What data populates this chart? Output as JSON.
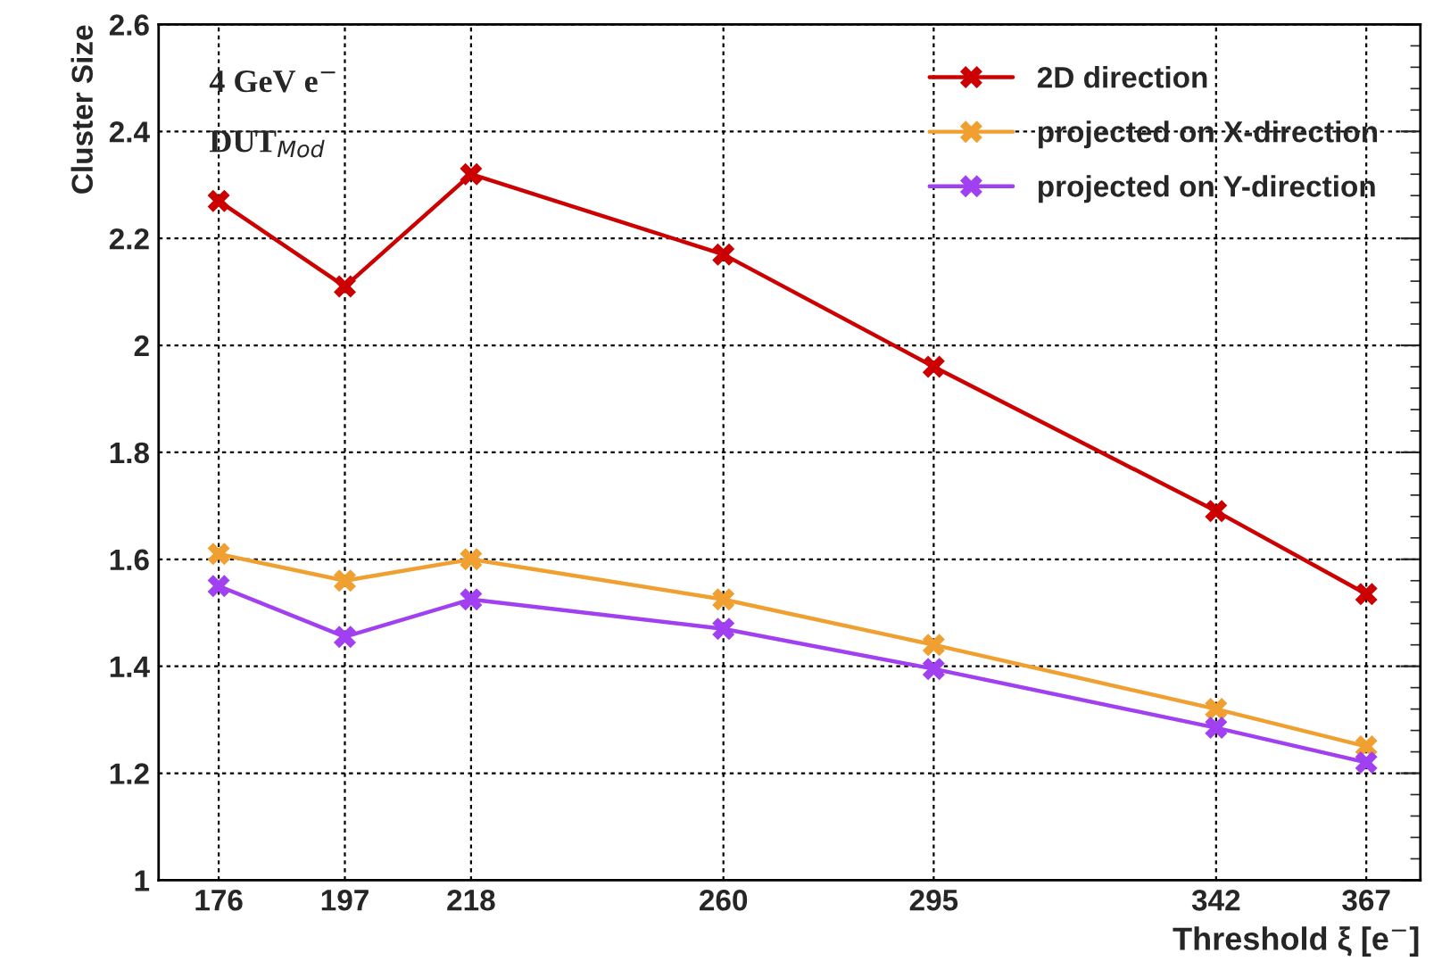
{
  "chart_data": {
    "type": "line",
    "xlabel": "Threshold ξ [e$^{−}$]",
    "ylabel": "Cluster Size",
    "x": [
      176,
      197,
      218,
      260,
      295,
      342,
      367
    ],
    "series": [
      {
        "name": "2D direction",
        "color": "#cc0000",
        "values": [
          2.27,
          2.11,
          2.32,
          2.17,
          1.96,
          1.69,
          1.535
        ]
      },
      {
        "name": "projected on X-direction",
        "color": "#f0a030",
        "values": [
          1.61,
          1.56,
          1.6,
          1.525,
          1.44,
          1.32,
          1.25
        ]
      },
      {
        "name": "projected on Y-direction",
        "color": "#a040f0",
        "values": [
          1.55,
          1.455,
          1.525,
          1.47,
          1.395,
          1.285,
          1.22
        ]
      }
    ],
    "xlim": [
      166,
      376
    ],
    "xticks": [
      176,
      197,
      218,
      260,
      295,
      342,
      367
    ],
    "ylim": [
      1,
      2.6
    ],
    "yticks": [
      1,
      1.2,
      1.4,
      1.6,
      1.8,
      2,
      2.2,
      2.4,
      2.6
    ],
    "annotations": [
      "4 GeV e$^{−}$",
      "DUT$_{Mod}$"
    ],
    "grid": true,
    "legend": "top right",
    "marker": "cross",
    "line_style": "solid"
  }
}
